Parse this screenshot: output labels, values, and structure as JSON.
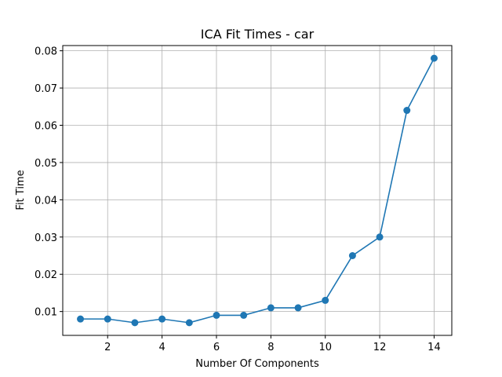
{
  "chart_data": {
    "type": "line",
    "title": "ICA Fit Times - car",
    "xlabel": "Number Of Components",
    "ylabel": "Fit Time",
    "xlim": [
      0.35,
      14.65
    ],
    "ylim": [
      0.0036,
      0.0814
    ],
    "grid": true,
    "color": "#1f77b4",
    "x_ticks": [
      2,
      4,
      6,
      8,
      10,
      12,
      14
    ],
    "y_ticks": [
      0.01,
      0.02,
      0.03,
      0.04,
      0.05,
      0.06,
      0.07,
      0.08
    ],
    "x_tick_labels": [
      "2",
      "4",
      "6",
      "8",
      "10",
      "12",
      "14"
    ],
    "y_tick_labels": [
      "0.01",
      "0.02",
      "0.03",
      "0.04",
      "0.05",
      "0.06",
      "0.07",
      "0.08"
    ],
    "x": [
      1,
      2,
      3,
      4,
      5,
      6,
      7,
      8,
      9,
      10,
      11,
      12,
      13,
      14
    ],
    "series": [
      {
        "values": [
          0.008,
          0.008,
          0.007,
          0.008,
          0.007,
          0.009,
          0.009,
          0.011,
          0.011,
          0.013,
          0.025,
          0.03,
          0.064,
          0.078
        ]
      }
    ]
  }
}
